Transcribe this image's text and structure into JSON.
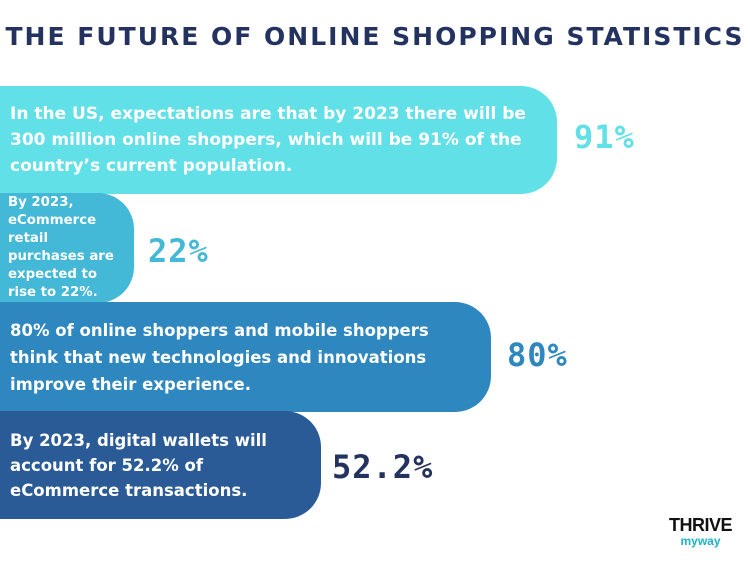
{
  "title": "THE FUTURE OF ONLINE SHOPPING STATISTICS",
  "stats": [
    {
      "text": "In the US, expectations are that by 2023 there will be 300 million online shoppers, which will be 91% of the country’s current population.",
      "value": "91%",
      "color": "#62e0e8"
    },
    {
      "text": "By 2023, eCommerce retail purchases are expected to rise to 22%.",
      "value": "22%",
      "color": "#43b8d7"
    },
    {
      "text": "80% of online shoppers and mobile shoppers think that new technologies and innovations improve their experience.",
      "value": "80%",
      "color": "#2f87bf"
    },
    {
      "text": "By 2023, digital wallets will account for 52.2% of eCommerce transactions.",
      "value": "52.2%",
      "color": "#2b5b96"
    }
  ],
  "logo": {
    "top": "THRIVE",
    "bottom": "myway"
  }
}
